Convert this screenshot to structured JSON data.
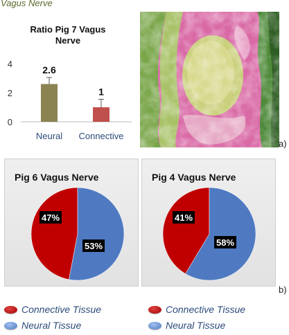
{
  "header": {
    "title": "Vagus Nerve"
  },
  "labels": {
    "a": "a)",
    "b": "b)"
  },
  "colors": {
    "neural_bar": "#8b8352",
    "connective_bar": "#c0504d",
    "pie_connective": "#c00000",
    "pie_neural": "#4f7ac2"
  },
  "chart_data": [
    {
      "type": "bar",
      "title": "Ratio Pig 7  Vagus Nerve",
      "categories": [
        "Neural",
        "Connective"
      ],
      "values": [
        2.6,
        1
      ],
      "data_labels": [
        "2.6",
        "1"
      ],
      "error_bars": true,
      "ylim": [
        0,
        4
      ],
      "yticks": [
        "0",
        "2",
        "4"
      ]
    },
    {
      "type": "pie",
      "title": "Pig 6  Vagus Nerve",
      "labels": [
        "Connective Tissue",
        "Neural Tissue"
      ],
      "values": [
        47,
        53
      ],
      "data_labels": [
        "47%",
        "53%"
      ]
    },
    {
      "type": "pie",
      "title": "Pig 4  Vagus Nerve",
      "labels": [
        "Connective Tissue",
        "Neural Tissue"
      ],
      "values": [
        41,
        58
      ],
      "data_labels": [
        "41%",
        "58%"
      ]
    }
  ],
  "legends": {
    "left": [
      {
        "label": "Connective Tissue"
      },
      {
        "label": "Neural Tissue"
      }
    ],
    "right": [
      {
        "label": "Connective Tissue"
      },
      {
        "label": "Neural Tissue"
      }
    ]
  }
}
